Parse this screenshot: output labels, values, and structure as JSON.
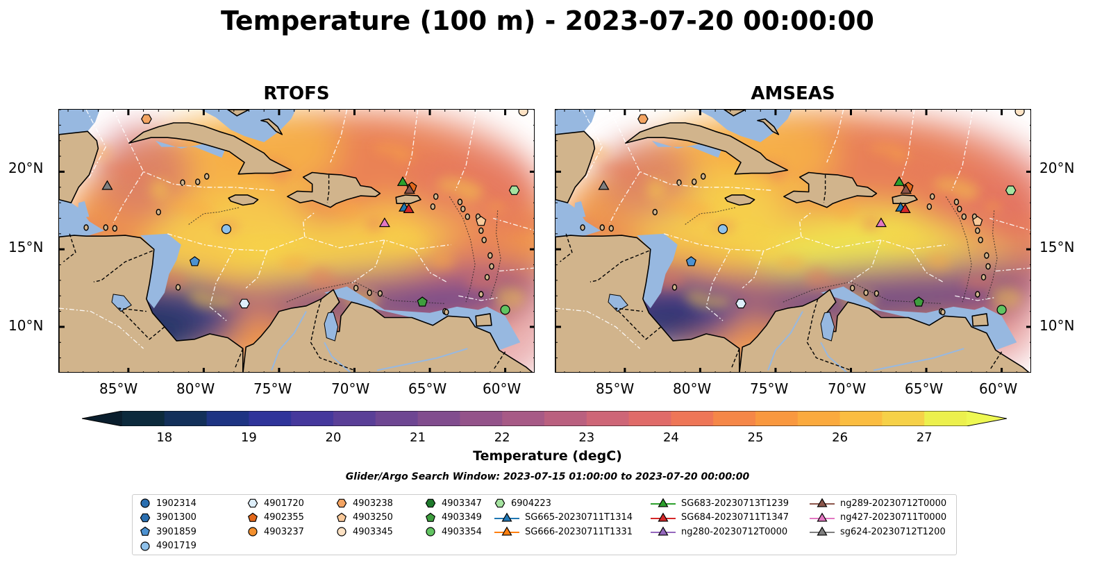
{
  "title": "Temperature (100 m) - 2023-07-20 00:00:00",
  "panels": [
    {
      "title": "RTOFS"
    },
    {
      "title": "AMSEAS"
    }
  ],
  "axes": {
    "lon_labels": [
      "85°W",
      "80°W",
      "75°W",
      "70°W",
      "65°W",
      "60°W"
    ],
    "lat_labels": [
      "20°N",
      "15°N",
      "10°N"
    ]
  },
  "colorbar": {
    "label": "Temperature (degC)",
    "ticks": [
      "18",
      "19",
      "20",
      "21",
      "22",
      "23",
      "24",
      "25",
      "26",
      "27"
    ],
    "colors": [
      "#0c2a3c",
      "#13305a",
      "#1e3483",
      "#2f349a",
      "#45389c",
      "#5a3f97",
      "#6e4692",
      "#814d8e",
      "#94538a",
      "#a75a86",
      "#ba607f",
      "#ce6677",
      "#e06b69",
      "#ee7657",
      "#f58748",
      "#f9983f",
      "#fbaa3e",
      "#fbbd41",
      "#f6d148",
      "#ecf04d"
    ],
    "under_color": "#0a1e2d",
    "over_color": "#eef853"
  },
  "search_window": "Glider/Argo Search Window: 2023-07-15 01:00:00 to 2023-07-20 00:00:00",
  "legend": {
    "columns": [
      [
        {
          "label": "1902314",
          "marker": "circle",
          "color": "#2b6fb0"
        },
        {
          "label": "3901300",
          "marker": "hexagon",
          "color": "#2b6fb0"
        },
        {
          "label": "3901859",
          "marker": "pentagon",
          "color": "#4d92d1"
        },
        {
          "label": "4901719",
          "marker": "circle",
          "color": "#8fc1ea"
        }
      ],
      [
        {
          "label": "4901720",
          "marker": "hexagon",
          "color": "#ddeefa"
        },
        {
          "label": "4902355",
          "marker": "pentagon",
          "color": "#e3681b"
        },
        {
          "label": "4903237",
          "marker": "circle",
          "color": "#f3902e"
        }
      ],
      [
        {
          "label": "4903238",
          "marker": "hexagon",
          "color": "#f4a462"
        },
        {
          "label": "4903250",
          "marker": "pentagon",
          "color": "#f9c99a"
        },
        {
          "label": "4903345",
          "marker": "circle",
          "color": "#fde2c4"
        }
      ],
      [
        {
          "label": "4903347",
          "marker": "hexagon",
          "color": "#1e7a2c"
        },
        {
          "label": "4903349",
          "marker": "pentagon",
          "color": "#3e9e3e"
        },
        {
          "label": "4903354",
          "marker": "circle",
          "color": "#62c462"
        }
      ],
      [
        {
          "label": "6904223",
          "marker": "hexagon",
          "color": "#a5e3a0"
        },
        {
          "label": "SG665-20230711T1314",
          "marker": "triangle-line",
          "color": "#1f77b4"
        },
        {
          "label": "SG666-20230711T1331",
          "marker": "triangle-line",
          "color": "#ff7f0e"
        }
      ],
      [
        {
          "label": "SG683-20230713T1239",
          "marker": "triangle-line",
          "color": "#2ca02c"
        },
        {
          "label": "SG684-20230711T1347",
          "marker": "triangle-line",
          "color": "#d62728"
        },
        {
          "label": "ng280-20230712T0000",
          "marker": "triangle-line",
          "color": "#9467bd"
        }
      ],
      [
        {
          "label": "ng289-20230712T0000",
          "marker": "triangle-line",
          "color": "#8c564b"
        },
        {
          "label": "ng427-20230711T0000",
          "marker": "triangle-line",
          "color": "#e377c2"
        },
        {
          "label": "sg624-20230712T1200",
          "marker": "triangle-line",
          "color": "#7f7f7f"
        }
      ]
    ]
  },
  "map_colors": {
    "land": "#d1b48c",
    "shelf": "#97b8e0"
  }
}
